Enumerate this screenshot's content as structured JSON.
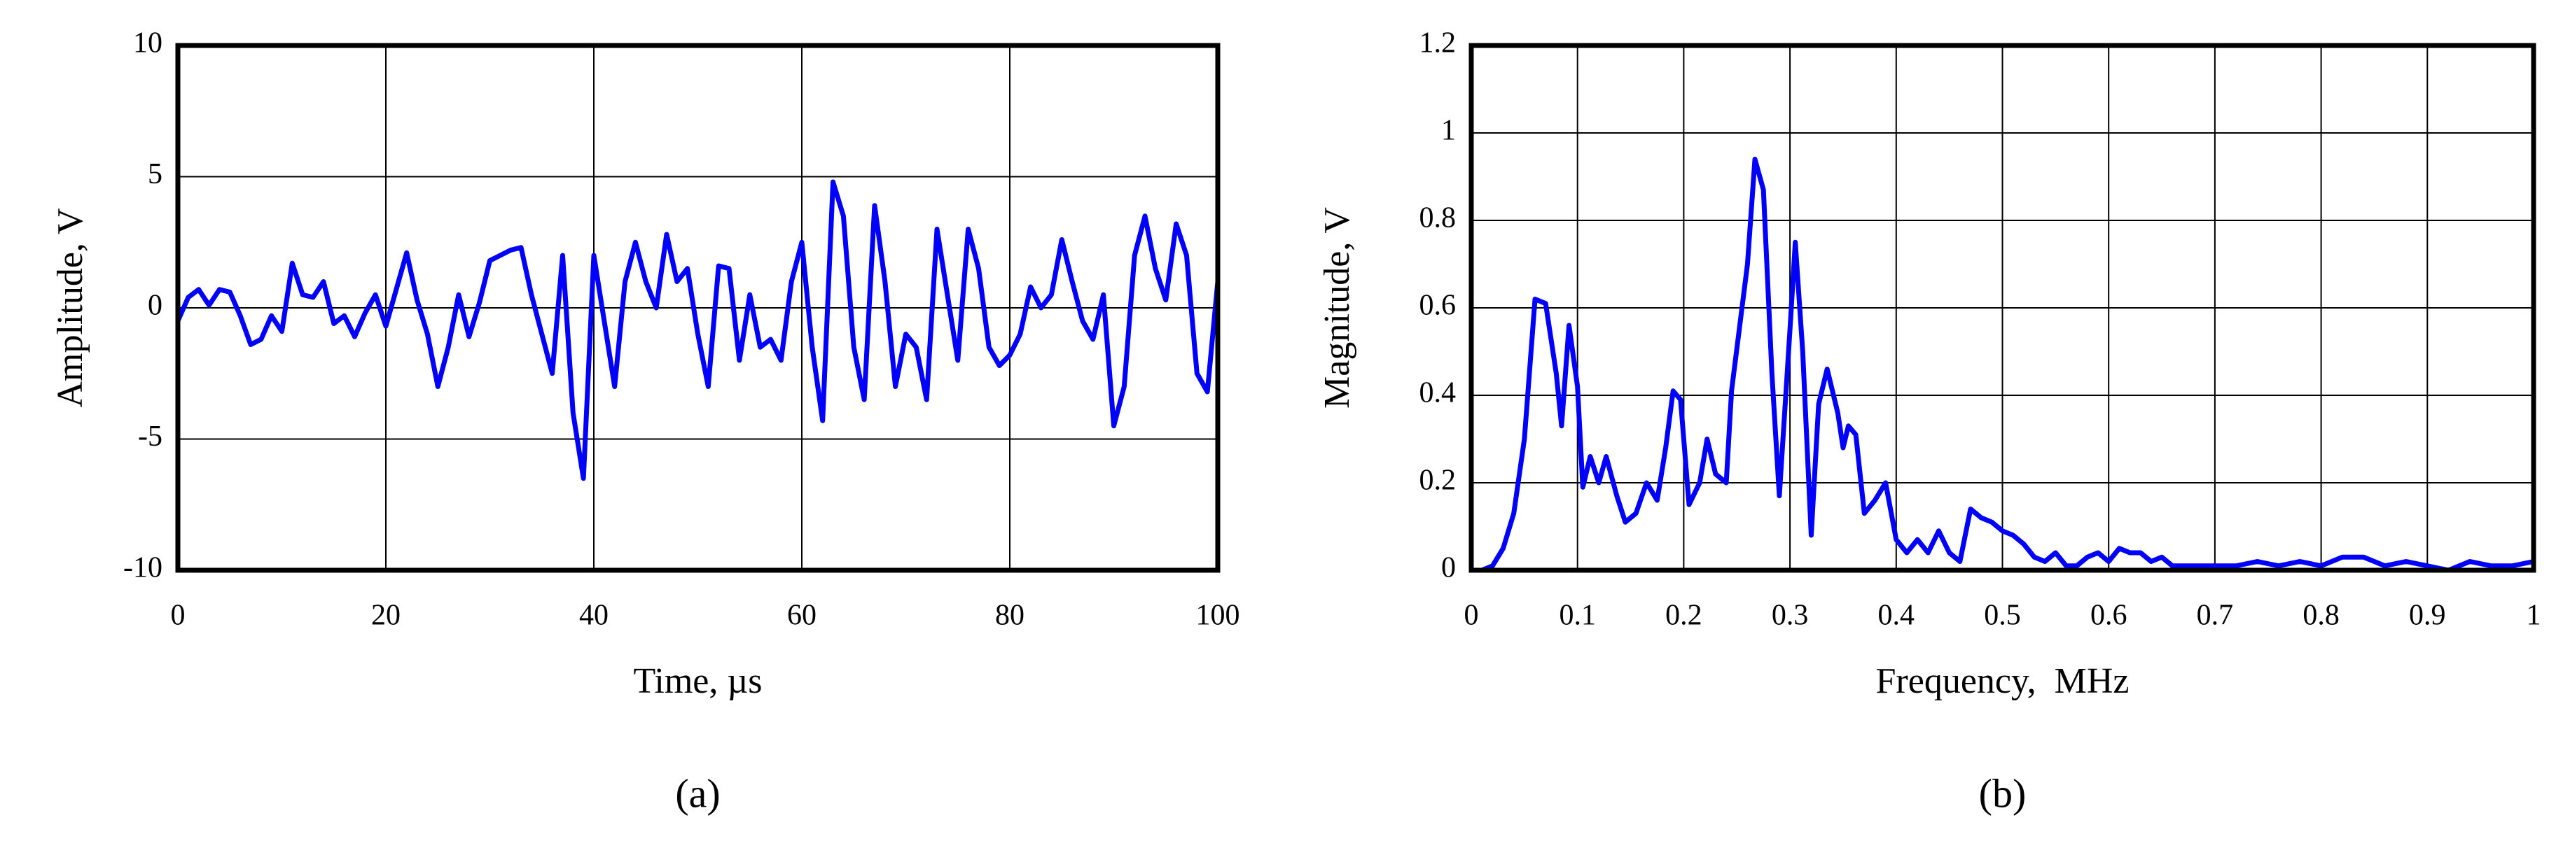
{
  "chart_data": [
    {
      "type": "line",
      "caption": "(a)",
      "x_label": "Time, µs",
      "y_label": "Amplitude, V",
      "xlim": [
        0,
        100
      ],
      "ylim": [
        -10,
        10
      ],
      "xticks": [
        0,
        20,
        40,
        60,
        80,
        100
      ],
      "yticks": [
        -10,
        -5,
        0,
        5,
        10
      ],
      "grid": true,
      "series": [
        {
          "name": "Amplitude",
          "color": "#0000ff",
          "x": [
            0,
            1,
            2,
            3,
            4,
            5,
            6,
            7,
            8,
            9,
            10,
            11,
            12,
            13,
            14,
            15,
            16,
            17,
            18,
            19,
            20,
            21,
            22,
            23,
            24,
            25,
            26,
            27,
            28,
            29,
            30,
            31,
            32,
            33,
            34,
            35,
            36,
            37,
            38,
            39,
            40,
            41,
            42,
            43,
            44,
            45,
            46,
            47,
            48,
            49,
            50,
            51,
            52,
            53,
            54,
            55,
            56,
            57,
            58,
            59,
            60,
            61,
            62,
            63,
            64,
            65,
            66,
            67,
            68,
            69,
            70,
            71,
            72,
            73,
            74,
            75,
            76,
            77,
            78,
            79,
            80,
            81,
            82,
            83,
            84,
            85,
            86,
            87,
            88,
            89,
            90,
            91,
            92,
            93,
            94,
            95,
            96,
            97,
            98,
            99,
            100
          ],
          "values": [
            -0.5,
            0.4,
            0.7,
            0.1,
            0.7,
            0.6,
            -0.3,
            -1.4,
            -1.2,
            -0.3,
            -0.9,
            1.7,
            0.5,
            0.4,
            1.0,
            -0.6,
            -0.3,
            -1.1,
            -0.2,
            0.5,
            -0.7,
            0.7,
            2.1,
            0.3,
            -1.0,
            -3.0,
            -1.5,
            0.5,
            -1.1,
            0.2,
            1.8,
            2.0,
            2.2,
            2.3,
            0.5,
            -1.0,
            -2.5,
            2.0,
            -4.0,
            -6.5,
            2.0,
            -0.5,
            -3.0,
            1.0,
            2.5,
            1.0,
            0.0,
            2.8,
            1.0,
            1.5,
            -1.0,
            -3.0,
            1.6,
            1.5,
            -2.0,
            0.5,
            -1.5,
            -1.2,
            -2.0,
            1.0,
            2.5,
            -1.5,
            -4.3,
            4.8,
            3.5,
            -1.5,
            -3.5,
            3.9,
            1.0,
            -3.0,
            -1.0,
            -1.5,
            -3.5,
            3.0,
            0.5,
            -2.0,
            3.0,
            1.5,
            -1.5,
            -2.2,
            -1.8,
            -1.0,
            0.8,
            0.0,
            0.5,
            2.6,
            1.0,
            -0.5,
            -1.2,
            0.5,
            -4.5,
            -3.0,
            2.0,
            3.5,
            1.5,
            0.3,
            3.2,
            2.0,
            -2.5,
            -3.2,
            1.0
          ]
        }
      ]
    },
    {
      "type": "line",
      "caption": "(b)",
      "x_label": "Frequency,  MHz",
      "y_label": "Magnitude, V",
      "xlim": [
        0,
        1
      ],
      "ylim": [
        0,
        1.2
      ],
      "xticks": [
        0,
        0.1,
        0.2,
        0.3,
        0.4,
        0.5,
        0.6,
        0.7,
        0.8,
        0.9,
        1
      ],
      "yticks": [
        0,
        0.2,
        0.4,
        0.6,
        0.8,
        1,
        1.2
      ],
      "grid": true,
      "series": [
        {
          "name": "Magnitude",
          "color": "#0000ff",
          "x": [
            0,
            0.01,
            0.02,
            0.03,
            0.04,
            0.05,
            0.06,
            0.07,
            0.08,
            0.085,
            0.092,
            0.1,
            0.105,
            0.112,
            0.12,
            0.127,
            0.137,
            0.145,
            0.155,
            0.165,
            0.175,
            0.183,
            0.19,
            0.197,
            0.205,
            0.215,
            0.222,
            0.23,
            0.24,
            0.245,
            0.26,
            0.267,
            0.275,
            0.283,
            0.29,
            0.3,
            0.305,
            0.312,
            0.32,
            0.327,
            0.335,
            0.345,
            0.35,
            0.355,
            0.362,
            0.37,
            0.38,
            0.39,
            0.4,
            0.41,
            0.42,
            0.43,
            0.44,
            0.45,
            0.46,
            0.47,
            0.48,
            0.49,
            0.5,
            0.51,
            0.52,
            0.53,
            0.54,
            0.55,
            0.56,
            0.57,
            0.58,
            0.59,
            0.6,
            0.61,
            0.62,
            0.63,
            0.64,
            0.65,
            0.66,
            0.68,
            0.7,
            0.72,
            0.74,
            0.76,
            0.78,
            0.8,
            0.82,
            0.84,
            0.86,
            0.88,
            0.9,
            0.92,
            0.94,
            0.96,
            0.98,
            1
          ],
          "values": [
            0,
            0,
            0.01,
            0.05,
            0.13,
            0.3,
            0.62,
            0.61,
            0.45,
            0.33,
            0.56,
            0.42,
            0.19,
            0.26,
            0.2,
            0.26,
            0.17,
            0.11,
            0.13,
            0.2,
            0.16,
            0.28,
            0.41,
            0.39,
            0.15,
            0.2,
            0.3,
            0.22,
            0.2,
            0.41,
            0.7,
            0.94,
            0.87,
            0.45,
            0.17,
            0.55,
            0.75,
            0.5,
            0.08,
            0.38,
            0.46,
            0.36,
            0.28,
            0.33,
            0.31,
            0.13,
            0.16,
            0.2,
            0.07,
            0.04,
            0.07,
            0.04,
            0.09,
            0.04,
            0.02,
            0.14,
            0.12,
            0.11,
            0.09,
            0.08,
            0.06,
            0.03,
            0.02,
            0.04,
            0.01,
            0.01,
            0.03,
            0.04,
            0.02,
            0.05,
            0.04,
            0.04,
            0.02,
            0.03,
            0.01,
            0.01,
            0.01,
            0.01,
            0.02,
            0.01,
            0.02,
            0.01,
            0.03,
            0.03,
            0.01,
            0.02,
            0.01,
            0,
            0.02,
            0.01,
            0.01,
            0.02
          ]
        }
      ]
    }
  ]
}
